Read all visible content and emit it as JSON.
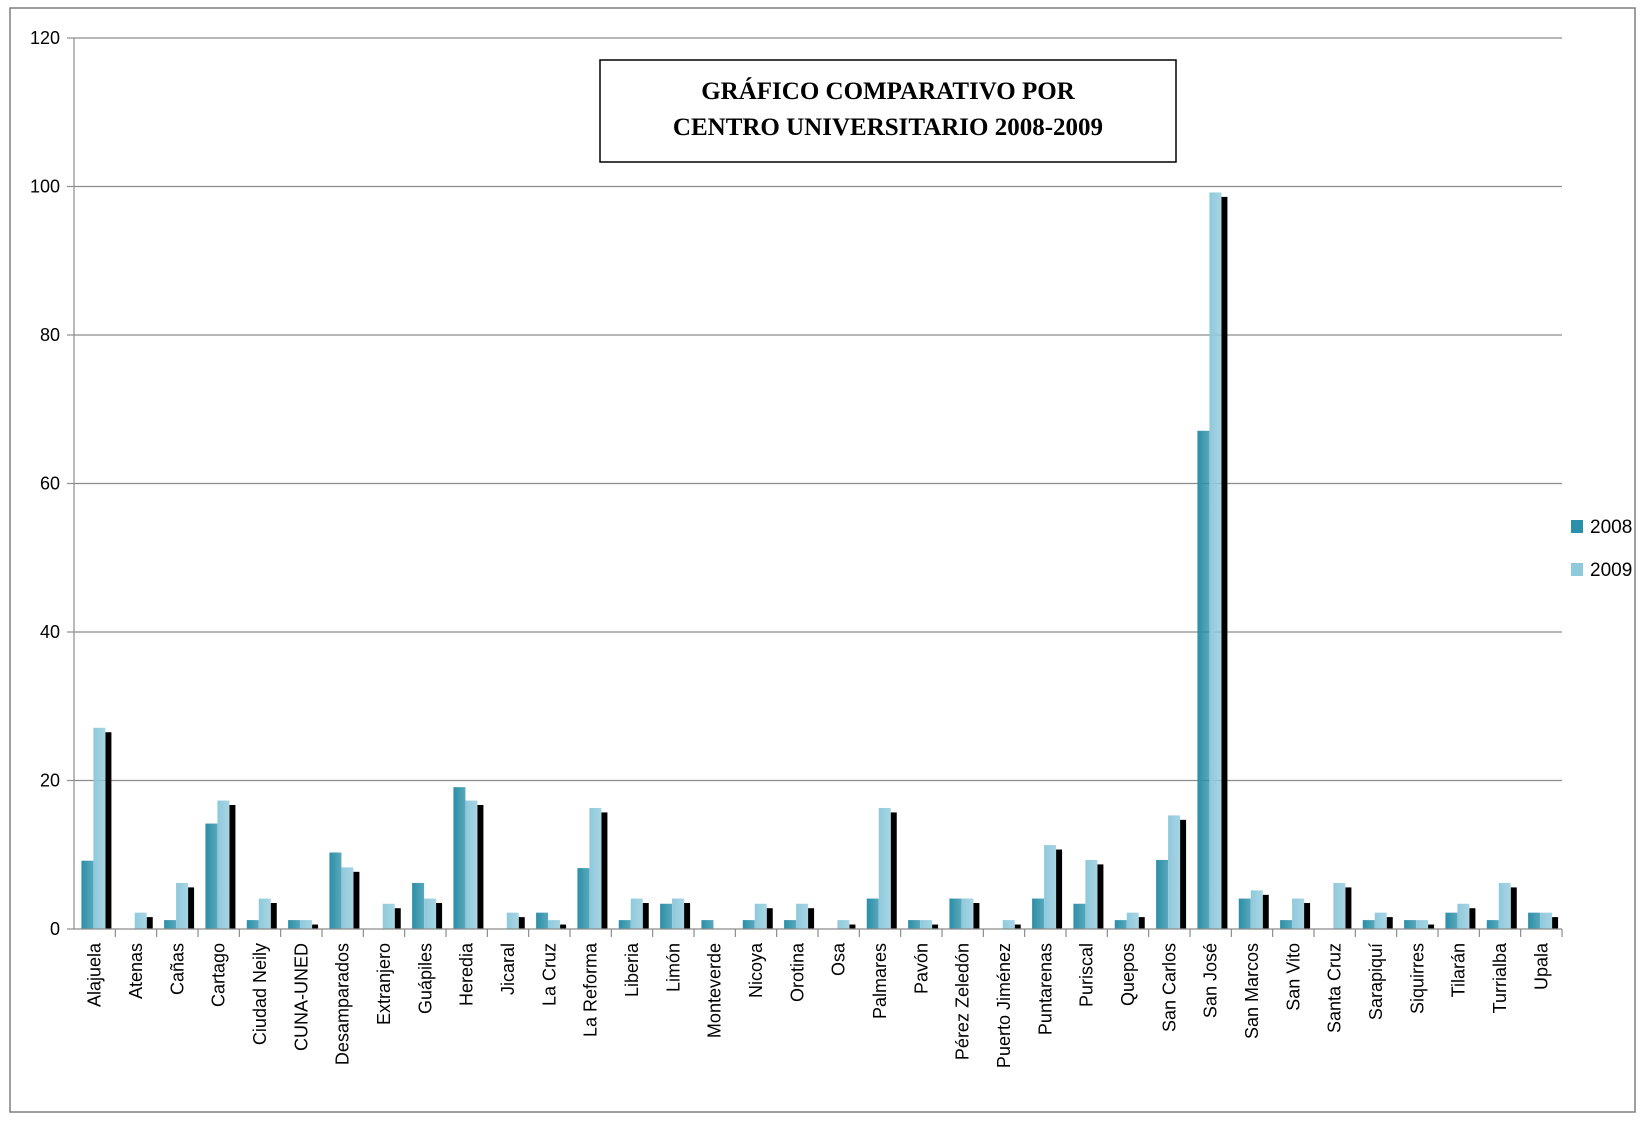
{
  "chart_data": {
    "type": "bar",
    "title_lines": [
      "GRÁFICO COMPARATIVO POR",
      "CENTRO UNIVERSITARIO 2008-2009"
    ],
    "xlabel": "",
    "ylabel": "",
    "ylim": [
      0,
      120
    ],
    "yticks": [
      "0",
      "20",
      "40",
      "60",
      "80",
      "100",
      "120"
    ],
    "grid": true,
    "legend_position": "right",
    "categories": [
      "Alajuela",
      "Atenas",
      "Cañas",
      "Cartago",
      "Ciudad Neily",
      "CUNA-UNED",
      "Desamparados",
      "Extranjero",
      "Guápiles",
      "Heredia",
      "Jicaral",
      "La Cruz",
      "La Reforma",
      "Liberia",
      "Limón",
      "Monteverde",
      "Nicoya",
      "Orotina",
      "Osa",
      "Palmares",
      "Pavón",
      "Pérez Zeledón",
      "Puerto Jiménez",
      "Puntarenas",
      "Puriscal",
      "Quepos",
      "San Carlos",
      "San José",
      "San Marcos",
      "San Vito",
      "Santa Cruz",
      "Sarapiquí",
      "Siquirres",
      "Tilarán",
      "Turrialba",
      "Upala"
    ],
    "series": [
      {
        "name": "2008",
        "color": "#2a8fa8",
        "values": [
          9.2,
          0,
          1.2,
          14.2,
          1.2,
          1.2,
          10.3,
          0,
          6.2,
          19.1,
          0,
          2.2,
          8.2,
          1.2,
          3.4,
          1.2,
          1.2,
          1.2,
          0,
          4.1,
          1.2,
          4.1,
          0,
          4.1,
          3.4,
          1.2,
          9.3,
          67.1,
          4.1,
          1.2,
          0,
          1.2,
          1.2,
          2.2,
          1.2,
          2.2
        ]
      },
      {
        "name": "2009",
        "color": "#8fc9dc",
        "values": [
          27.1,
          2.2,
          6.2,
          17.3,
          4.1,
          1.2,
          8.3,
          3.4,
          4.1,
          17.3,
          2.2,
          1.2,
          16.3,
          4.1,
          4.1,
          0,
          3.4,
          3.4,
          1.2,
          16.3,
          1.2,
          4.1,
          1.2,
          11.3,
          9.3,
          2.2,
          15.3,
          99.2,
          5.2,
          4.1,
          6.2,
          2.2,
          1.2,
          3.4,
          6.2,
          2.2
        ]
      }
    ]
  }
}
